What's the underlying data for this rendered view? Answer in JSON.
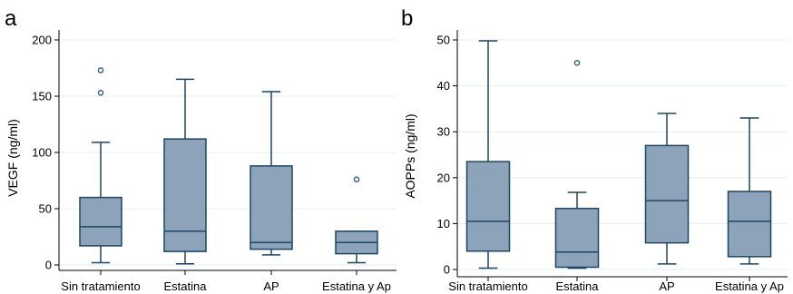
{
  "colors": {
    "box_fill": "#8ca3ba",
    "box_stroke": "#1f4566",
    "grid": "#e3edf0",
    "axis": "#000000",
    "outlier": "#3d6688"
  },
  "chart_data": [
    {
      "type": "box",
      "panel_label": "a",
      "ylabel": "VEGF (ng/ml)",
      "xlabel": "",
      "ylim": [
        0,
        200
      ],
      "yticks": [
        0,
        50,
        100,
        150,
        200
      ],
      "grid": true,
      "categories": [
        "Sin tratamiento",
        "Estatina",
        "AP",
        "Estatina y Ap"
      ],
      "boxes": [
        {
          "min": 2,
          "q1": 17,
          "median": 34,
          "q3": 60,
          "max": 109,
          "outliers": [
            153,
            173
          ]
        },
        {
          "min": 1,
          "q1": 12,
          "median": 30,
          "q3": 112,
          "max": 165,
          "outliers": []
        },
        {
          "min": 9,
          "q1": 14,
          "median": 20,
          "q3": 88,
          "max": 154,
          "outliers": []
        },
        {
          "min": 2,
          "q1": 10,
          "median": 20,
          "q3": 30,
          "max": 30,
          "outliers": [
            76
          ]
        }
      ]
    },
    {
      "type": "box",
      "panel_label": "b",
      "ylabel": "AOPPs (ng/ml)",
      "xlabel": "",
      "ylim": [
        0,
        50
      ],
      "yticks": [
        0,
        10,
        20,
        30,
        40,
        50
      ],
      "grid": true,
      "categories": [
        "Sin tratamiento",
        "Estatina",
        "AP",
        "Estatina y Ap"
      ],
      "boxes": [
        {
          "min": 0.3,
          "q1": 4,
          "median": 10.5,
          "q3": 23.5,
          "max": 49.8,
          "outliers": []
        },
        {
          "min": 0.3,
          "q1": 0.5,
          "median": 3.8,
          "q3": 13.3,
          "max": 16.8,
          "outliers": [
            45
          ]
        },
        {
          "min": 1.2,
          "q1": 5.8,
          "median": 15,
          "q3": 27,
          "max": 34,
          "outliers": []
        },
        {
          "min": 1.2,
          "q1": 2.8,
          "median": 10.5,
          "q3": 17,
          "max": 33,
          "outliers": []
        }
      ]
    }
  ]
}
